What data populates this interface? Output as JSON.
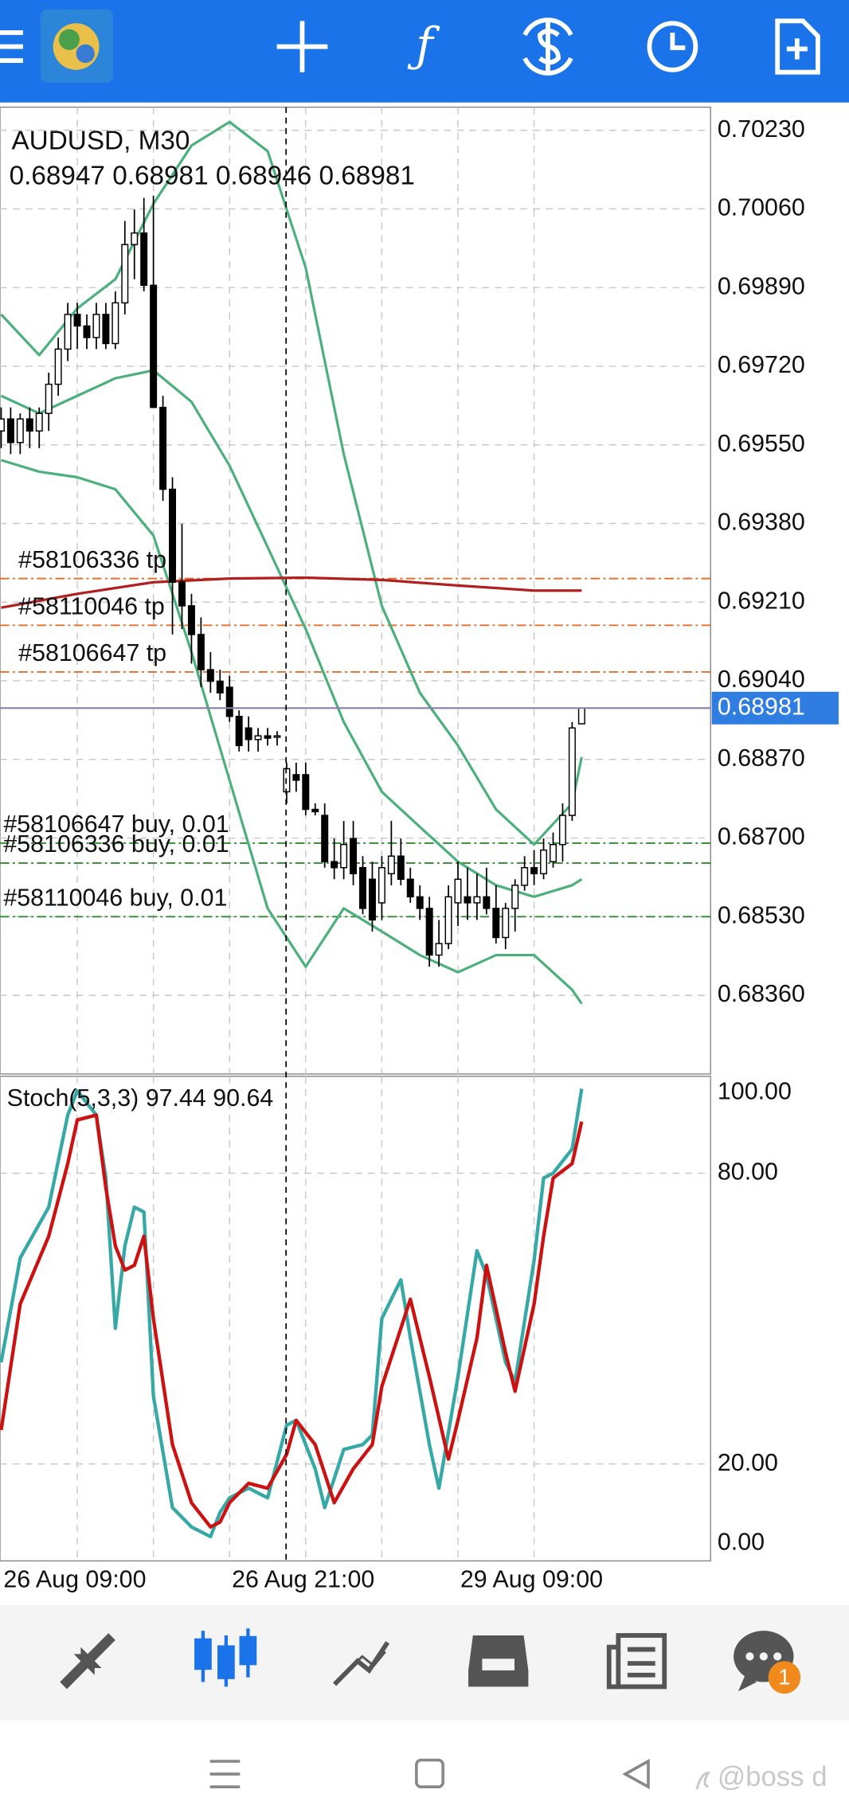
{
  "chart_data": {
    "type": "candlestick",
    "title": "AUDUSD, M30",
    "categories": [
      "26 Aug 09:00",
      null,
      null,
      null,
      null,
      null,
      null,
      null,
      null,
      null,
      null,
      null,
      null,
      null,
      null,
      null,
      null,
      null,
      null,
      null,
      null,
      null,
      null,
      null,
      "26 Aug 21:00",
      null,
      null,
      null,
      null,
      null,
      null,
      null,
      null,
      null,
      null,
      null,
      null,
      null,
      null,
      null,
      null,
      null,
      null,
      null,
      null,
      null,
      null,
      null,
      "29 Aug 09:00",
      null,
      null,
      null,
      null,
      null,
      null,
      null,
      null,
      null,
      null,
      null,
      null,
      null
    ],
    "open": [
      0.6958,
      0.69606,
      0.69555,
      0.69606,
      0.6958,
      0.69618,
      0.69681,
      0.69757,
      0.69832,
      0.69807,
      0.69782,
      0.69832,
      0.69769,
      0.69857,
      0.69983,
      0.70008,
      0.69895,
      0.69631,
      0.69454,
      0.69253,
      0.69202,
      0.6914,
      0.69064,
      0.69039,
      0.69026,
      0.68963,
      0.68938,
      0.68913,
      0.68921,
      0.68918,
      0.688,
      0.68837,
      0.68837,
      0.68762,
      0.68749,
      0.68649,
      0.68636,
      0.68699,
      0.68636,
      0.68611,
      0.6856,
      0.68623,
      0.68661,
      0.68611,
      0.68573,
      0.68548,
      0.68447,
      0.68472,
      0.6856,
      0.68573,
      0.6856,
      0.68573,
      0.68548,
      0.68485,
      0.68548,
      0.68598,
      0.68636,
      0.68623,
      0.68649,
      0.68686,
      0.68749,
      0.68947
    ],
    "high": [
      0.69631,
      0.69631,
      0.69618,
      0.69631,
      0.69631,
      0.69706,
      0.69782,
      0.69857,
      0.69857,
      0.69832,
      0.69857,
      0.69857,
      0.69882,
      0.70034,
      0.70059,
      0.70084,
      0.70089,
      0.69656,
      0.6948,
      0.69379,
      0.69228,
      0.69177,
      0.69102,
      0.69064,
      0.69051,
      0.68976,
      0.68963,
      0.68938,
      0.68938,
      0.68931,
      0.68863,
      0.68863,
      0.68863,
      0.68775,
      0.68775,
      0.68699,
      0.68737,
      0.68737,
      0.68661,
      0.68649,
      0.68661,
      0.68737,
      0.68699,
      0.68636,
      0.68598,
      0.68573,
      0.68523,
      0.68598,
      0.68649,
      0.68636,
      0.68623,
      0.68636,
      0.68598,
      0.6856,
      0.68611,
      0.68661,
      0.68674,
      0.68699,
      0.68712,
      0.68775,
      0.68951,
      0.68981
    ],
    "low": [
      0.69543,
      0.6953,
      0.6953,
      0.69543,
      0.69543,
      0.6958,
      0.69656,
      0.69731,
      0.69757,
      0.69757,
      0.69757,
      0.69757,
      0.69757,
      0.69832,
      0.69908,
      0.69882,
      0.69631,
      0.69429,
      0.6914,
      0.69152,
      0.69077,
      0.69026,
      0.69014,
      0.68998,
      0.68951,
      0.68887,
      0.68887,
      0.68887,
      0.689,
      0.689,
      0.68775,
      0.688,
      0.68749,
      0.68749,
      0.68636,
      0.68611,
      0.68611,
      0.68598,
      0.68535,
      0.68498,
      0.68523,
      0.68598,
      0.68598,
      0.6856,
      0.68523,
      0.68422,
      0.68422,
      0.6846,
      0.6851,
      0.68523,
      0.68523,
      0.68535,
      0.68472,
      0.6846,
      0.68498,
      0.68586,
      0.68598,
      0.68611,
      0.68636,
      0.68649,
      0.68737,
      0.68946
    ],
    "close": [
      0.69606,
      0.69555,
      0.69606,
      0.6958,
      0.69618,
      0.69681,
      0.69757,
      0.69832,
      0.69807,
      0.69782,
      0.69832,
      0.69769,
      0.69857,
      0.69983,
      0.70008,
      0.69895,
      0.69631,
      0.69454,
      0.69253,
      0.69202,
      0.6914,
      0.69064,
      0.69039,
      0.69014,
      0.68963,
      0.689,
      0.68913,
      0.68921,
      0.68916,
      0.68921,
      0.6885,
      0.68825,
      0.68762,
      0.68757,
      0.68649,
      0.68636,
      0.68686,
      0.68623,
      0.68548,
      0.68523,
      0.68636,
      0.68661,
      0.68611,
      0.68573,
      0.68548,
      0.68447,
      0.68472,
      0.68573,
      0.68611,
      0.6856,
      0.68573,
      0.68548,
      0.68485,
      0.68548,
      0.68598,
      0.68636,
      0.68623,
      0.68674,
      0.68686,
      0.68749,
      0.68938,
      0.68981
    ],
    "up_color": "#ffffff",
    "down_color": "#000000",
    "ylim": [
      0.6819,
      0.7028
    ],
    "yticks": [
      {
        "value": 0.7023,
        "label": "0.70230"
      },
      {
        "value": 0.7006,
        "label": "0.70060"
      },
      {
        "value": 0.6989,
        "label": "0.69890"
      },
      {
        "value": 0.6972,
        "label": "0.69720"
      },
      {
        "value": 0.6955,
        "label": "0.69550"
      },
      {
        "value": 0.6938,
        "label": "0.69380"
      },
      {
        "value": 0.6921,
        "label": "0.69210"
      },
      {
        "value": 0.6904,
        "label": "0.69040"
      },
      {
        "value": 0.6887,
        "label": "0.68870"
      },
      {
        "value": 0.687,
        "label": "0.68700"
      },
      {
        "value": 0.6853,
        "label": "0.68530"
      },
      {
        "value": 0.6836,
        "label": "0.68360"
      }
    ],
    "grid": true,
    "overlays": [
      {
        "color": "#4cb07c",
        "x": [
          0,
          4,
          8,
          12,
          16,
          20,
          24,
          28,
          32,
          36,
          40,
          44,
          48,
          52,
          56,
          60,
          61
        ],
        "values": [
          0.69832,
          0.69744,
          0.69845,
          0.69908,
          0.70071,
          0.70197,
          0.70248,
          0.70185,
          0.69933,
          0.6953,
          0.69202,
          0.69014,
          0.689,
          0.68762,
          0.68686,
          0.68775,
          0.68875
        ]
      },
      {
        "color": "#4cb07c",
        "x": [
          0,
          4,
          8,
          12,
          16,
          20,
          24,
          28,
          32,
          36,
          40,
          44,
          48,
          52,
          56,
          60,
          61
        ],
        "values": [
          0.69656,
          0.69618,
          0.69656,
          0.69694,
          0.69711,
          0.69643,
          0.69505,
          0.69329,
          0.69152,
          0.68951,
          0.688,
          0.68724,
          0.68649,
          0.68598,
          0.68573,
          0.68598,
          0.68611
        ]
      },
      {
        "color": "#4cb07c",
        "x": [
          0,
          4,
          8,
          12,
          16,
          20,
          24,
          28,
          32,
          36,
          40,
          44,
          48,
          52,
          56,
          60,
          61
        ],
        "values": [
          0.69517,
          0.69492,
          0.6948,
          0.69454,
          0.69354,
          0.69102,
          0.68825,
          0.68548,
          0.68422,
          0.68548,
          0.68498,
          0.68447,
          0.6841,
          0.68447,
          0.68447,
          0.68372,
          0.68342
        ]
      },
      {
        "color": "#b02020",
        "x": [
          0,
          8,
          16,
          24,
          32,
          40,
          48,
          56,
          61
        ],
        "values": [
          0.69198,
          0.69228,
          0.69253,
          0.69261,
          0.69263,
          0.69258,
          0.69246,
          0.69235,
          0.69235
        ]
      }
    ],
    "orders": [
      {
        "label": "#58106336 tp",
        "price": 0.69261,
        "kind": "tp"
      },
      {
        "label": "#58110046 tp",
        "price": 0.6916,
        "kind": "tp"
      },
      {
        "label": "#58106647 tp",
        "price": 0.69059,
        "kind": "tp"
      },
      {
        "label": "#58106647 buy, 0.01",
        "price": 0.68689,
        "kind": "buy"
      },
      {
        "label": "#58106336 buy, 0.01",
        "price": 0.68646,
        "kind": "buy"
      },
      {
        "label": "#58110046 buy, 0.01",
        "price": 0.6853,
        "kind": "buy"
      }
    ],
    "order_colors": {
      "tp": "#e0702c",
      "buy": "#2e8b2e"
    },
    "current_price": 0.68981,
    "current_price_color": "#8a7fa8",
    "indicator": {
      "type": "line",
      "title": "Stoch(5,3,3)",
      "ylim": [
        0,
        100
      ],
      "yticks": [
        {
          "value": 100,
          "label": "100.00"
        },
        {
          "value": 80,
          "label": "80.00"
        },
        {
          "value": 20,
          "label": "20.00"
        },
        {
          "value": 0,
          "label": "0.00"
        }
      ],
      "series": [
        {
          "color": "#36a9a6",
          "x": [
            0,
            2,
            5,
            7,
            8,
            10,
            11,
            12,
            13,
            14,
            15,
            16,
            18,
            20,
            22,
            23,
            24,
            26,
            28,
            30,
            31,
            33,
            34,
            36,
            38,
            39,
            40,
            42,
            43,
            45,
            46,
            48,
            50,
            51,
            53,
            54,
            56,
            57,
            58,
            60,
            61
          ],
          "values": [
            41,
            62.5,
            73,
            92,
            97,
            92,
            79,
            48,
            65,
            73,
            72,
            34,
            11,
            7,
            5,
            10,
            13,
            15,
            13,
            28,
            29,
            19,
            11,
            23,
            24,
            26,
            50,
            58,
            46,
            24,
            15,
            38,
            64,
            59,
            41,
            37,
            62,
            79,
            80,
            85,
            97.44
          ]
        },
        {
          "color": "#cc1111",
          "x": [
            0,
            2,
            5,
            7,
            8,
            10,
            11,
            12,
            13,
            14,
            15,
            16,
            18,
            20,
            22,
            23,
            24,
            26,
            28,
            30,
            31,
            33,
            35,
            37,
            39,
            40,
            42,
            43,
            45,
            47,
            48,
            50,
            51,
            53,
            54,
            56,
            57,
            58,
            60,
            61
          ],
          "values": [
            27,
            53,
            67,
            82,
            91,
            92,
            77,
            65,
            60,
            61,
            67,
            50,
            24,
            12,
            7,
            8,
            12,
            16,
            15,
            22,
            29,
            24,
            12,
            19,
            24,
            36,
            48,
            54,
            38,
            21,
            29,
            46,
            61,
            43,
            35,
            53,
            67,
            79,
            82,
            90.64
          ]
        }
      ]
    }
  },
  "ui": {
    "badge": "1",
    "watermark": "@boss d"
  }
}
